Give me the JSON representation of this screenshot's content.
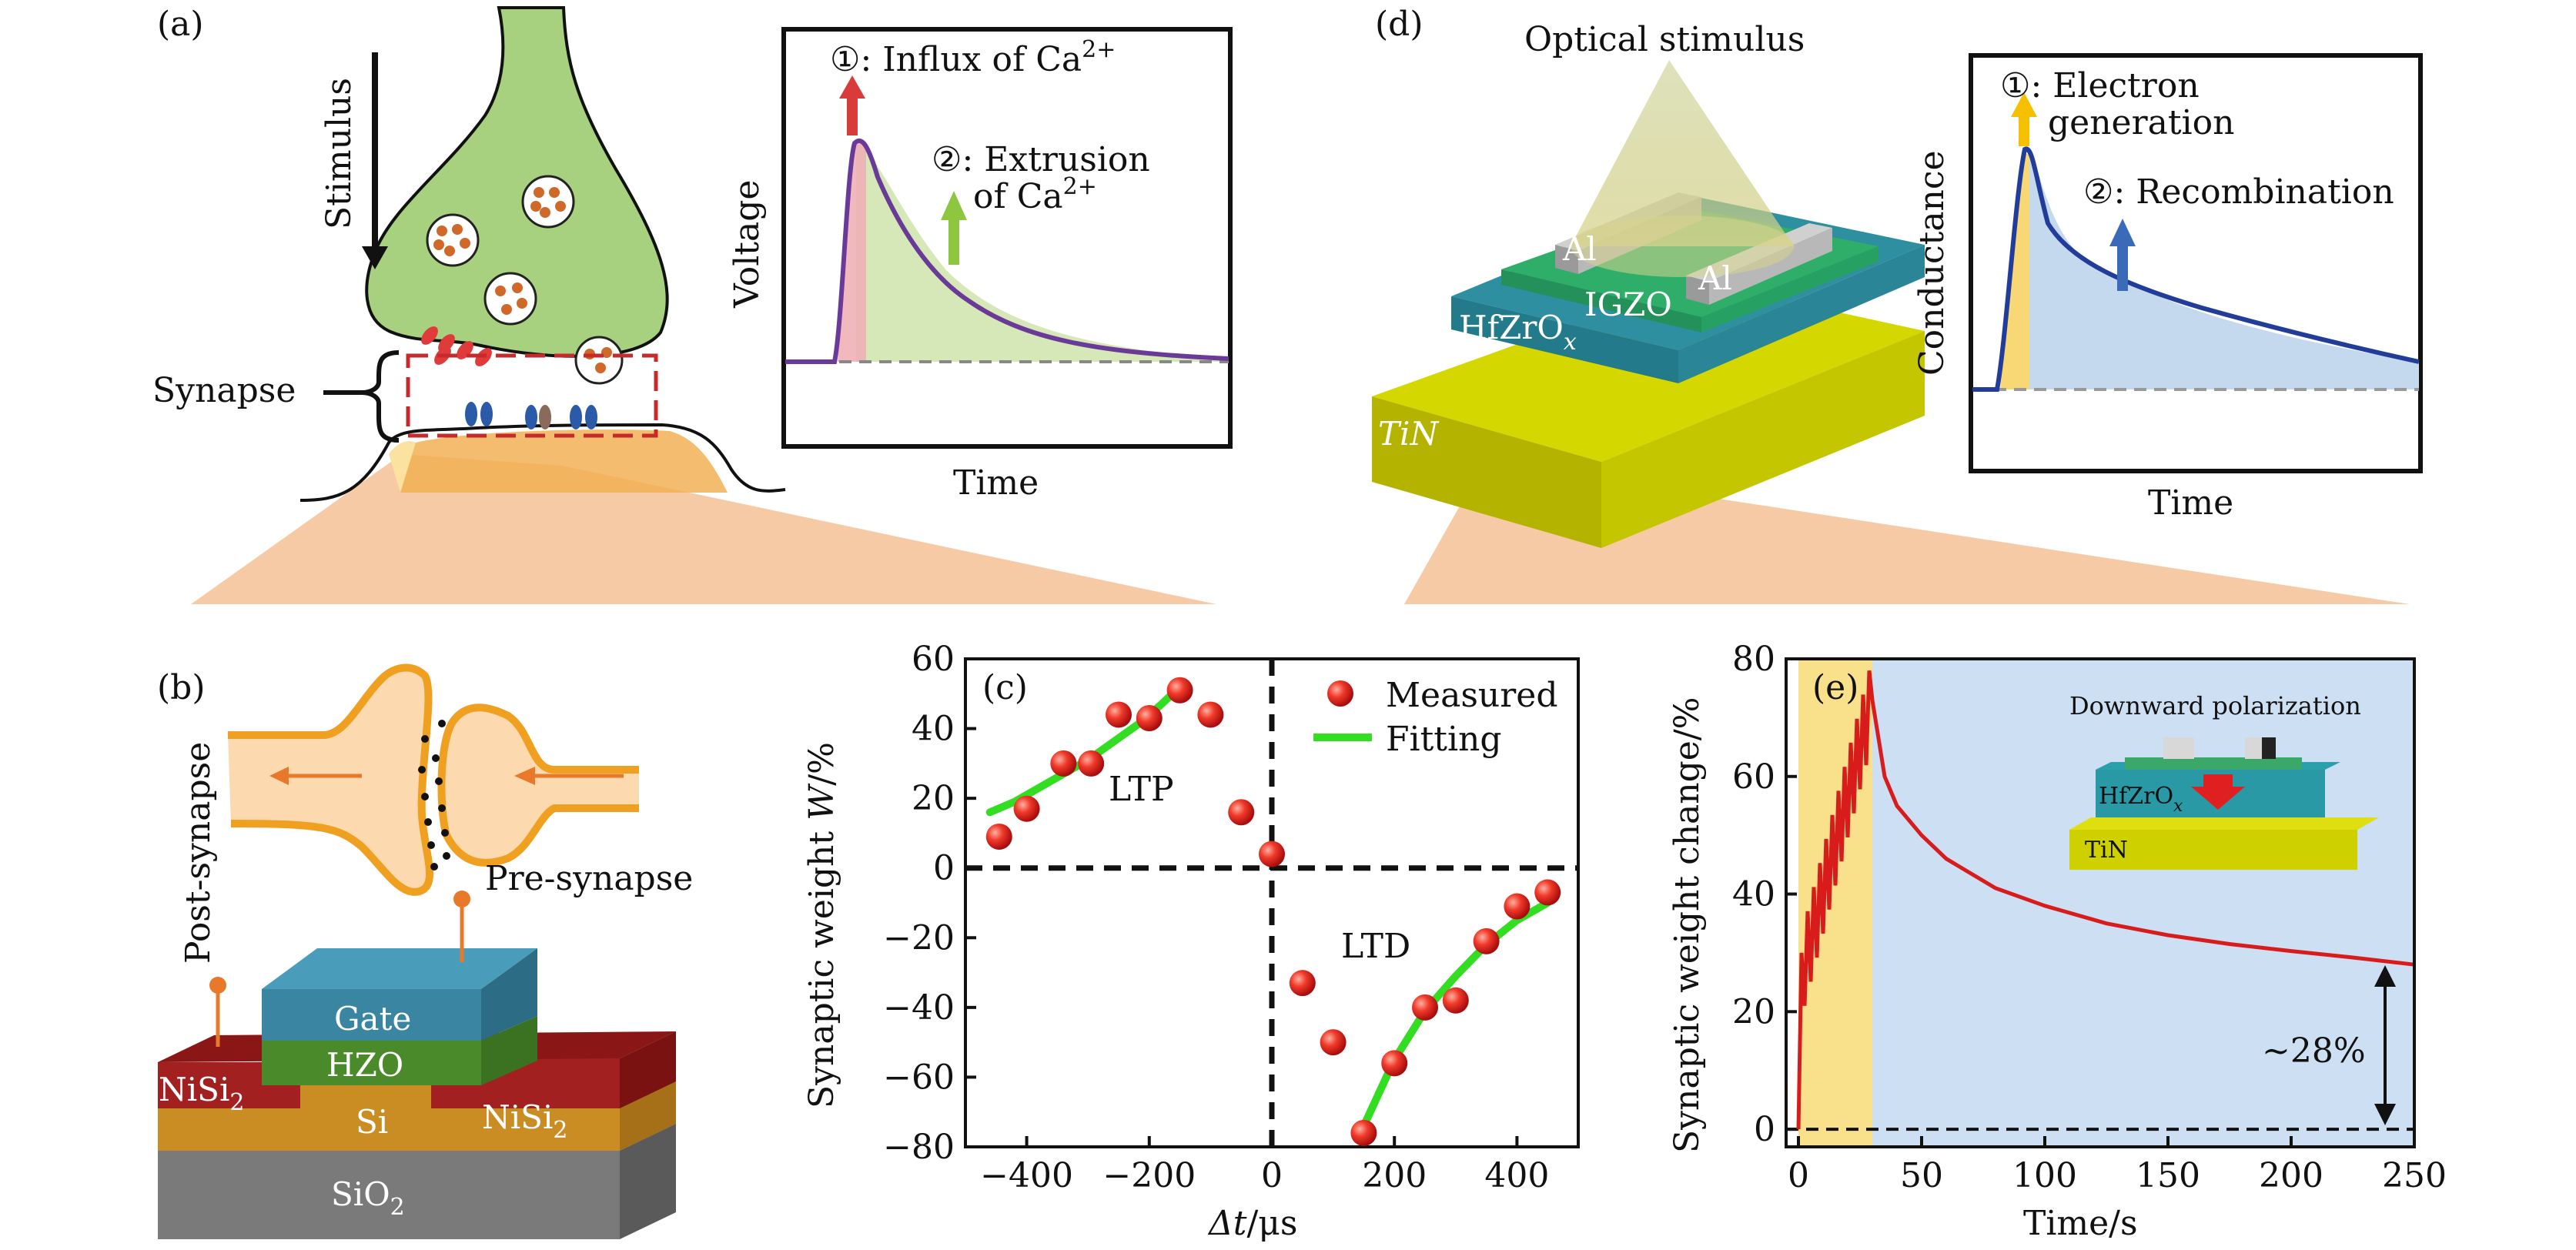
{
  "panels": {
    "a": {
      "label": "(a)",
      "stimulus": "Stimulus",
      "synapse": "Synapse",
      "inset": {
        "ylabel": "Voltage",
        "xlabel": "Time",
        "step1": "①: Influx of Ca",
        "step1_sup": "2+",
        "step2_line1": "②: Extrusion",
        "step2_line2": "of Ca",
        "step2_sup": "2+"
      }
    },
    "d": {
      "label": "(d)",
      "optical": "Optical stimulus",
      "al_left": "Al",
      "al_right": "Al",
      "igzo": "IGZO",
      "hfzro": "HfZrO",
      "hfzro_sub": "x",
      "tin": "TiN",
      "inset": {
        "ylabel": "Conductance",
        "xlabel": "Time",
        "step1_line1": "①: Electron",
        "step1_line2": "generation",
        "step2": "②: Recombination"
      }
    },
    "b": {
      "label": "(b)",
      "post": "Post-synapse",
      "pre": "Pre-synapse",
      "gate": "Gate",
      "hzo": "HZO",
      "nisi_left": "NiSi",
      "nisi_right": "NiSi",
      "nisi_sub": "2",
      "si": "Si",
      "sio": "SiO",
      "sio_sub": "2"
    },
    "c": {
      "label": "(c)",
      "ltp": "LTP",
      "ltd": "LTD",
      "ylabel_pre": "Synaptic weight ",
      "ylabel_var": "W",
      "ylabel_post": "/%",
      "xlabel_var": "Δt",
      "xlabel_post": "/μs",
      "legend_measured": "Measured",
      "legend_fitting": "Fitting"
    },
    "e": {
      "label": "(e)",
      "ylabel": "Synaptic weight change/%",
      "xlabel": "Time/s",
      "annotation": "~28%",
      "inset_title": "Downward polarization",
      "inset_hfzro": "HfZrO",
      "inset_hfzro_sub": "x",
      "inset_tin": "TiN"
    }
  },
  "chart_data": [
    {
      "id": "c",
      "type": "scatter",
      "xlim": [
        -500,
        500
      ],
      "ylim": [
        -80,
        60
      ],
      "xticks": [
        -400,
        -200,
        0,
        200,
        400
      ],
      "yticks": [
        -80,
        -60,
        -40,
        -20,
        0,
        20,
        40,
        60
      ],
      "xtick_labels": [
        "−400",
        "−200",
        "0",
        "200",
        "400"
      ],
      "ytick_labels": [
        "−80",
        "−60",
        "−40",
        "−20",
        "0",
        "20",
        "40",
        "60"
      ],
      "series": [
        {
          "name": "Measured",
          "x": [
            -445,
            -400,
            -340,
            -295,
            -250,
            -200,
            -150,
            -100,
            -50,
            0,
            50,
            100,
            150,
            200,
            250,
            300,
            350,
            400,
            450
          ],
          "y": [
            9,
            17,
            30,
            30,
            44,
            43,
            51,
            44,
            16,
            4,
            -33,
            -50,
            -76,
            -56,
            -40,
            -38,
            -21,
            -11,
            -7
          ]
        },
        {
          "name": "Fitting",
          "x": [
            -460,
            -420,
            -380,
            -340,
            -300,
            -260,
            -220,
            -180,
            -150
          ],
          "y": [
            16,
            19,
            23,
            27,
            31,
            36,
            41,
            47,
            52
          ]
        },
        {
          "name": "Fitting",
          "x": [
            150,
            200,
            250,
            300,
            350,
            400,
            450
          ],
          "y": [
            -74,
            -55,
            -41,
            -31,
            -22,
            -15,
            -10
          ]
        }
      ],
      "colors": {
        "measured": "#e01e1e",
        "fitting": "#33dd22"
      },
      "legend": "top-right"
    },
    {
      "id": "e",
      "type": "line",
      "xlim": [
        -5,
        250
      ],
      "ylim": [
        -3,
        80
      ],
      "xticks": [
        0,
        50,
        100,
        150,
        200,
        250
      ],
      "yticks": [
        0,
        20,
        40,
        60,
        80
      ],
      "stimulus_window": [
        0,
        30
      ],
      "decay": {
        "x": [
          30,
          35,
          40,
          50,
          60,
          80,
          100,
          125,
          150,
          175,
          200,
          225,
          250
        ],
        "y": [
          73,
          60,
          55,
          50,
          46,
          41,
          38,
          35,
          33,
          31.5,
          30.3,
          29.2,
          28
        ]
      },
      "colors": {
        "curve": "#d81c1c",
        "stim": "#f8e18a",
        "rest": "#cddff2"
      }
    }
  ]
}
